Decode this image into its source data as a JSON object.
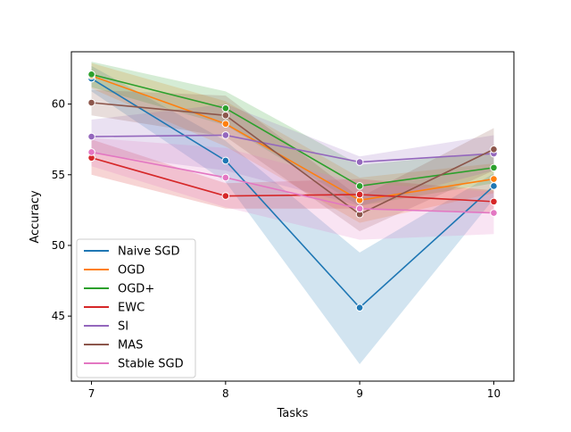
{
  "chart_data": {
    "type": "line",
    "title": "",
    "xlabel": "Tasks",
    "ylabel": "Accuracy",
    "x": [
      7,
      8,
      9,
      10
    ],
    "xticks": [
      "7",
      "8",
      "9",
      "10"
    ],
    "yticks": [
      "45",
      "50",
      "55",
      "60"
    ],
    "ytick_values": [
      45,
      50,
      55,
      60
    ],
    "xlim": [
      6.85,
      10.15
    ],
    "ylim": [
      40.4,
      63.7
    ],
    "grid": false,
    "legend_position": "lower-left",
    "series": [
      {
        "name": "Naive SGD",
        "color": "#1f77b4",
        "values": [
          61.8,
          56.0,
          45.6,
          54.2
        ],
        "lower": [
          60.9,
          54.5,
          41.6,
          53.3
        ],
        "upper": [
          62.7,
          57.4,
          49.5,
          55.1
        ]
      },
      {
        "name": "OGD",
        "color": "#ff7f0e",
        "values": [
          62.0,
          58.6,
          53.2,
          54.7
        ],
        "lower": [
          61.1,
          57.0,
          51.6,
          53.7
        ],
        "upper": [
          62.9,
          60.2,
          54.8,
          55.8
        ]
      },
      {
        "name": "OGD+",
        "color": "#2ca02c",
        "values": [
          62.1,
          59.7,
          54.2,
          55.5
        ],
        "lower": [
          61.2,
          58.5,
          52.8,
          54.4
        ],
        "upper": [
          63.0,
          60.9,
          55.7,
          56.6
        ]
      },
      {
        "name": "EWC",
        "color": "#d62728",
        "values": [
          56.2,
          53.5,
          53.6,
          53.1
        ],
        "lower": [
          55.0,
          52.6,
          52.6,
          52.3
        ],
        "upper": [
          57.5,
          54.4,
          54.7,
          53.9
        ]
      },
      {
        "name": "SI",
        "color": "#9467bd",
        "values": [
          57.7,
          57.8,
          55.9,
          56.5
        ],
        "lower": [
          56.5,
          55.3,
          52.8,
          55.3
        ],
        "upper": [
          58.9,
          60.0,
          56.3,
          57.8
        ]
      },
      {
        "name": "MAS",
        "color": "#8c564b",
        "values": [
          60.1,
          59.2,
          52.2,
          56.8
        ],
        "lower": [
          59.2,
          57.7,
          51.0,
          55.3
        ],
        "upper": [
          61.0,
          60.6,
          53.4,
          58.3
        ]
      },
      {
        "name": "Stable SGD",
        "color": "#e377c2",
        "values": [
          56.6,
          54.8,
          52.6,
          52.3
        ],
        "lower": [
          55.6,
          52.7,
          50.4,
          50.8
        ],
        "upper": [
          57.6,
          56.9,
          54.4,
          53.8
        ]
      }
    ]
  }
}
